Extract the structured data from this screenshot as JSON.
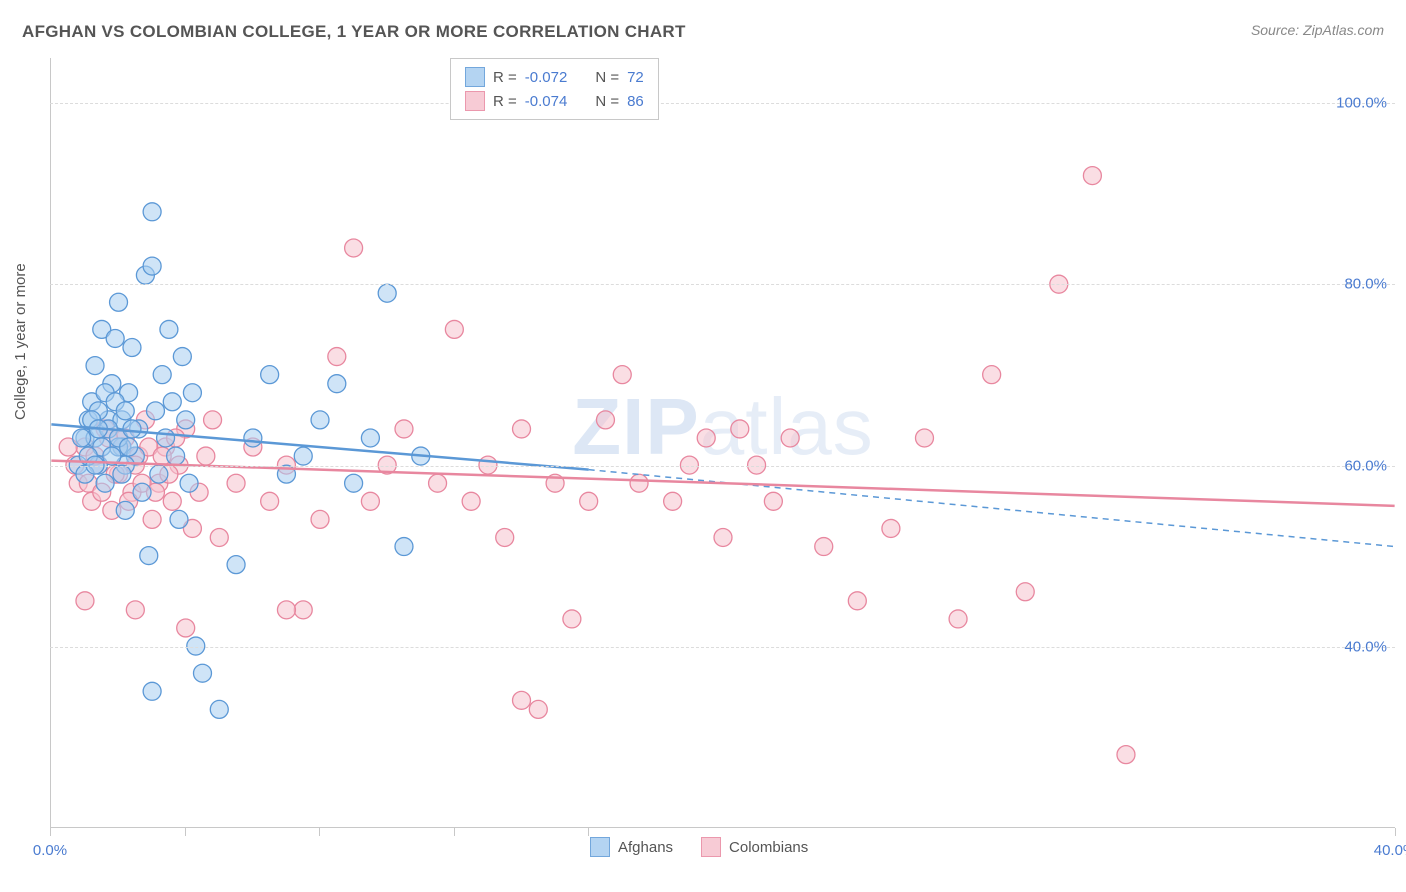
{
  "title": "AFGHAN VS COLOMBIAN COLLEGE, 1 YEAR OR MORE CORRELATION CHART",
  "source": "Source: ZipAtlas.com",
  "watermark": {
    "zip": "ZIP",
    "atlas": "atlas"
  },
  "chart": {
    "type": "scatter",
    "background_color": "#ffffff",
    "grid_color": "#dcdcdc",
    "border_color": "#c8c8c8",
    "yaxis_label": "College, 1 year or more",
    "xlim": [
      0,
      40
    ],
    "ylim": [
      20,
      105
    ],
    "ytick_labels": [
      "40.0%",
      "60.0%",
      "80.0%",
      "100.0%"
    ],
    "ytick_values": [
      40,
      60,
      80,
      100
    ],
    "xtick_values": [
      0,
      4,
      8,
      12,
      16,
      40
    ],
    "xtick_labels": {
      "0": "0.0%",
      "40": "40.0%"
    },
    "tick_label_color": "#4a7bd0",
    "axis_label_color": "#555555",
    "tick_fontsize": 15,
    "label_fontsize": 15,
    "marker_radius": 9,
    "marker_stroke_width": 1.3,
    "line_width": 2.5
  },
  "series": [
    {
      "name": "Afghans",
      "fill": "#a8cdf0",
      "stroke": "#5b98d6",
      "fill_opacity": 0.55,
      "R": "-0.072",
      "N": "72",
      "trend_solid": {
        "x1": 0,
        "y1": 64.5,
        "x2": 16,
        "y2": 59.5
      },
      "trend_dashed": {
        "x1": 16,
        "y1": 59.5,
        "x2": 40,
        "y2": 51
      },
      "points": [
        [
          1.0,
          63
        ],
        [
          1.2,
          67
        ],
        [
          1.3,
          71
        ],
        [
          1.4,
          60
        ],
        [
          1.5,
          75
        ],
        [
          1.6,
          58
        ],
        [
          1.7,
          65
        ],
        [
          1.8,
          69
        ],
        [
          2.0,
          78
        ],
        [
          2.1,
          62
        ],
        [
          2.2,
          55
        ],
        [
          2.3,
          68
        ],
        [
          2.4,
          73
        ],
        [
          2.5,
          61
        ],
        [
          2.6,
          64
        ],
        [
          2.7,
          57
        ],
        [
          2.8,
          81
        ],
        [
          3.0,
          88
        ],
        [
          3.0,
          82
        ],
        [
          2.9,
          50
        ],
        [
          3.1,
          66
        ],
        [
          3.2,
          59
        ],
        [
          3.3,
          70
        ],
        [
          3.4,
          63
        ],
        [
          3.5,
          75
        ],
        [
          3.6,
          67
        ],
        [
          3.7,
          61
        ],
        [
          3.8,
          54
        ],
        [
          3.9,
          72
        ],
        [
          4.0,
          65
        ],
        [
          4.1,
          58
        ],
        [
          4.2,
          68
        ],
        [
          1.9,
          74
        ],
        [
          2.0,
          62
        ],
        [
          2.1,
          65
        ],
        [
          2.2,
          60
        ],
        [
          4.3,
          40
        ],
        [
          4.5,
          37
        ],
        [
          5.0,
          33
        ],
        [
          1.1,
          65
        ],
        [
          1.3,
          63
        ],
        [
          1.4,
          66
        ],
        [
          1.5,
          62
        ],
        [
          1.6,
          68
        ],
        [
          1.7,
          64
        ],
        [
          1.8,
          61
        ],
        [
          1.9,
          67
        ],
        [
          2.0,
          63
        ],
        [
          2.1,
          59
        ],
        [
          2.2,
          66
        ],
        [
          2.3,
          62
        ],
        [
          2.4,
          64
        ],
        [
          5.5,
          49
        ],
        [
          6.0,
          63
        ],
        [
          6.5,
          70
        ],
        [
          7.0,
          59
        ],
        [
          7.5,
          61
        ],
        [
          8.0,
          65
        ],
        [
          8.5,
          69
        ],
        [
          9.0,
          58
        ],
        [
          9.5,
          63
        ],
        [
          10.0,
          79
        ],
        [
          10.5,
          51
        ],
        [
          3.0,
          35
        ],
        [
          11.0,
          61
        ],
        [
          0.8,
          60
        ],
        [
          0.9,
          63
        ],
        [
          1.0,
          59
        ],
        [
          1.1,
          61
        ],
        [
          1.2,
          65
        ],
        [
          1.3,
          60
        ],
        [
          1.4,
          64
        ]
      ]
    },
    {
      "name": "Colombians",
      "fill": "#f6c2ce",
      "stroke": "#e8879f",
      "fill_opacity": 0.55,
      "R": "-0.074",
      "N": "86",
      "trend_solid": {
        "x1": 0,
        "y1": 60.5,
        "x2": 40,
        "y2": 55.5
      },
      "points": [
        [
          0.8,
          58
        ],
        [
          1.0,
          62
        ],
        [
          1.2,
          56
        ],
        [
          1.4,
          60
        ],
        [
          1.6,
          64
        ],
        [
          1.8,
          55
        ],
        [
          2.0,
          59
        ],
        [
          2.2,
          63
        ],
        [
          2.4,
          57
        ],
        [
          2.6,
          61
        ],
        [
          2.8,
          65
        ],
        [
          3.0,
          54
        ],
        [
          3.2,
          58
        ],
        [
          3.4,
          62
        ],
        [
          3.6,
          56
        ],
        [
          3.8,
          60
        ],
        [
          4.0,
          64
        ],
        [
          4.2,
          53
        ],
        [
          4.4,
          57
        ],
        [
          4.6,
          61
        ],
        [
          4.8,
          65
        ],
        [
          5.0,
          52
        ],
        [
          5.5,
          58
        ],
        [
          6.0,
          62
        ],
        [
          6.5,
          56
        ],
        [
          7.0,
          60
        ],
        [
          7.5,
          44
        ],
        [
          8.0,
          54
        ],
        [
          8.5,
          72
        ],
        [
          9.0,
          84
        ],
        [
          9.5,
          56
        ],
        [
          10.0,
          60
        ],
        [
          10.5,
          64
        ],
        [
          7.0,
          44
        ],
        [
          11.5,
          58
        ],
        [
          12.0,
          75
        ],
        [
          12.5,
          56
        ],
        [
          13.0,
          60
        ],
        [
          13.5,
          52
        ],
        [
          14.0,
          64
        ],
        [
          14.5,
          33
        ],
        [
          15.0,
          58
        ],
        [
          15.5,
          43
        ],
        [
          16.0,
          56
        ],
        [
          16.5,
          65
        ],
        [
          17.0,
          70
        ],
        [
          17.5,
          58
        ],
        [
          14.0,
          34
        ],
        [
          18.5,
          56
        ],
        [
          19.0,
          60
        ],
        [
          19.5,
          63
        ],
        [
          20.0,
          52
        ],
        [
          20.5,
          64
        ],
        [
          21.0,
          60
        ],
        [
          21.5,
          56
        ],
        [
          22.0,
          63
        ],
        [
          23.0,
          51
        ],
        [
          25.0,
          53
        ],
        [
          24.0,
          45
        ],
        [
          26.0,
          63
        ],
        [
          27.0,
          43
        ],
        [
          28.0,
          70
        ],
        [
          29.0,
          46
        ],
        [
          30.0,
          80
        ],
        [
          31.0,
          92
        ],
        [
          32.0,
          28
        ],
        [
          1.0,
          45
        ],
        [
          2.5,
          44
        ],
        [
          4.0,
          42
        ],
        [
          2.0,
          63
        ],
        [
          0.5,
          62
        ],
        [
          0.7,
          60
        ],
        [
          1.1,
          58
        ],
        [
          1.3,
          61
        ],
        [
          1.5,
          57
        ],
        [
          1.7,
          63
        ],
        [
          1.9,
          59
        ],
        [
          2.1,
          62
        ],
        [
          2.3,
          56
        ],
        [
          2.5,
          60
        ],
        [
          2.7,
          58
        ],
        [
          2.9,
          62
        ],
        [
          3.1,
          57
        ],
        [
          3.3,
          61
        ],
        [
          3.5,
          59
        ],
        [
          3.7,
          63
        ]
      ]
    }
  ],
  "legend_top": {
    "rows": [
      {
        "series_idx": 0,
        "r_label": "R =",
        "n_label": "N ="
      },
      {
        "series_idx": 1,
        "r_label": "R =",
        "n_label": "N ="
      }
    ]
  },
  "legend_bottom": [
    {
      "series_idx": 0
    },
    {
      "series_idx": 1
    }
  ]
}
